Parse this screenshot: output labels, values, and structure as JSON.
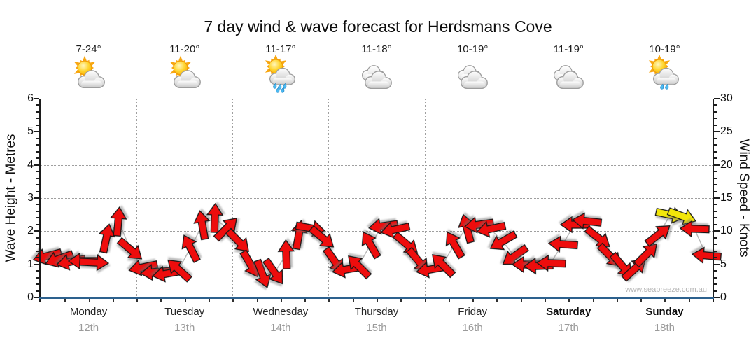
{
  "title": "7 day wind & wave forecast for Herdsmans Cove",
  "watermark": "www.seabreeze.com.au",
  "axes": {
    "left_label": "Wave Height - Metres",
    "right_label": "Wind Speed - Knots",
    "left_ticks_metres": [
      0,
      1,
      2,
      3,
      4,
      5,
      6
    ],
    "right_ticks_knots": [
      0,
      5,
      10,
      15,
      20,
      25,
      30
    ]
  },
  "days": [
    {
      "name": "Monday",
      "date": "12th",
      "temp": "7-24°",
      "icon": "sun-cloud",
      "bold": false
    },
    {
      "name": "Tuesday",
      "date": "13th",
      "temp": "11-20°",
      "icon": "sun-cloud",
      "bold": false
    },
    {
      "name": "Wednesday",
      "date": "14th",
      "temp": "11-17°",
      "icon": "sun-cloud-rain",
      "rain_drops": 5,
      "bold": false
    },
    {
      "name": "Thursday",
      "date": "15th",
      "temp": "11-18°",
      "icon": "cloudy",
      "bold": false
    },
    {
      "name": "Friday",
      "date": "16th",
      "temp": "10-19°",
      "icon": "cloudy",
      "bold": false
    },
    {
      "name": "Saturday",
      "date": "17th",
      "temp": "11-19°",
      "icon": "cloudy",
      "bold": true
    },
    {
      "name": "Sunday",
      "date": "18th",
      "temp": "10-19°",
      "icon": "sun-cloud-rain",
      "rain_drops": 2,
      "bold": true
    }
  ],
  "chart_data": {
    "type": "wind-arrow-timeseries",
    "title": "7 day wind & wave forecast for Herdsmans Cove",
    "categories": [
      "Monday 12th",
      "Tuesday 13th",
      "Wednesday 14th",
      "Thursday 15th",
      "Friday 16th",
      "Saturday 17th",
      "Sunday 18th"
    ],
    "steps_per_day": 8,
    "y_left": {
      "label": "Wave Height - Metres",
      "range": [
        0,
        6
      ],
      "gridlines_at": [
        1,
        2,
        3,
        4,
        5
      ]
    },
    "y_right": {
      "label": "Wind Speed - Knots",
      "range": [
        0,
        30
      ],
      "minor_tick_every": 1,
      "major_tick_every": 5
    },
    "arrow_direction_convention": "deg = arrow heading in degrees clockwise from pointing right/east (90=down, 180=left, 270=up)",
    "note": "single curve read on both axes: wave height (m) = knots / 5; arrows coloured red below ~12 kts, yellow above",
    "colors": {
      "red_arrow": "#ee0d0d",
      "yellow_arrow": "#f2e60a",
      "arrow_outline": "#161616",
      "x_axis": "#2d618e",
      "gridline": "#9f9f9f",
      "curve": "#b9b9b9"
    },
    "points": [
      {
        "kt": 6.2,
        "deg": 165
      },
      {
        "kt": 5.8,
        "deg": 160
      },
      {
        "kt": 5.4,
        "deg": 168
      },
      {
        "kt": 5.5,
        "deg": 180
      },
      {
        "kt": 5.3,
        "deg": 3
      },
      {
        "kt": 9.0,
        "deg": 282
      },
      {
        "kt": 11.5,
        "deg": 275
      },
      {
        "kt": 7.2,
        "deg": 40
      },
      {
        "kt": 4.5,
        "deg": 168
      },
      {
        "kt": 3.8,
        "deg": 175
      },
      {
        "kt": 3.6,
        "deg": 170
      },
      {
        "kt": 4.2,
        "deg": 222
      },
      {
        "kt": 7.5,
        "deg": 243
      },
      {
        "kt": 11.0,
        "deg": 260
      },
      {
        "kt": 12.0,
        "deg": 272
      },
      {
        "kt": 10.5,
        "deg": 315
      },
      {
        "kt": 8.5,
        "deg": 45
      },
      {
        "kt": 5.0,
        "deg": 60
      },
      {
        "kt": 3.5,
        "deg": 70
      },
      {
        "kt": 3.8,
        "deg": 55
      },
      {
        "kt": 6.5,
        "deg": 268
      },
      {
        "kt": 9.5,
        "deg": 280
      },
      {
        "kt": 10.5,
        "deg": 10
      },
      {
        "kt": 9.0,
        "deg": 40
      },
      {
        "kt": 5.5,
        "deg": 55
      },
      {
        "kt": 4.2,
        "deg": 170
      },
      {
        "kt": 4.8,
        "deg": 225
      },
      {
        "kt": 8.0,
        "deg": 240
      },
      {
        "kt": 10.8,
        "deg": 172
      },
      {
        "kt": 10.2,
        "deg": 168
      },
      {
        "kt": 8.0,
        "deg": 40
      },
      {
        "kt": 5.5,
        "deg": 50
      },
      {
        "kt": 4.2,
        "deg": 170
      },
      {
        "kt": 5.0,
        "deg": 225
      },
      {
        "kt": 8.0,
        "deg": 240
      },
      {
        "kt": 10.5,
        "deg": 255
      },
      {
        "kt": 11.0,
        "deg": 172
      },
      {
        "kt": 10.3,
        "deg": 168
      },
      {
        "kt": 8.5,
        "deg": 150
      },
      {
        "kt": 6.2,
        "deg": 145
      },
      {
        "kt": 5.0,
        "deg": 180
      },
      {
        "kt": 4.8,
        "deg": 178
      },
      {
        "kt": 5.2,
        "deg": 182
      },
      {
        "kt": 8.0,
        "deg": 184
      },
      {
        "kt": 11.0,
        "deg": 180
      },
      {
        "kt": 11.5,
        "deg": 186
      },
      {
        "kt": 9.0,
        "deg": 38
      },
      {
        "kt": 6.2,
        "deg": 45
      },
      {
        "kt": 4.8,
        "deg": 50
      },
      {
        "kt": 4.3,
        "deg": 318
      },
      {
        "kt": 6.5,
        "deg": 315
      },
      {
        "kt": 9.5,
        "deg": 322
      },
      {
        "kt": 12.5,
        "deg": 12,
        "c": "yellow"
      },
      {
        "kt": 12.3,
        "deg": 20,
        "c": "yellow"
      },
      {
        "kt": 10.3,
        "deg": 182
      },
      {
        "kt": 6.3,
        "deg": 185
      }
    ]
  }
}
